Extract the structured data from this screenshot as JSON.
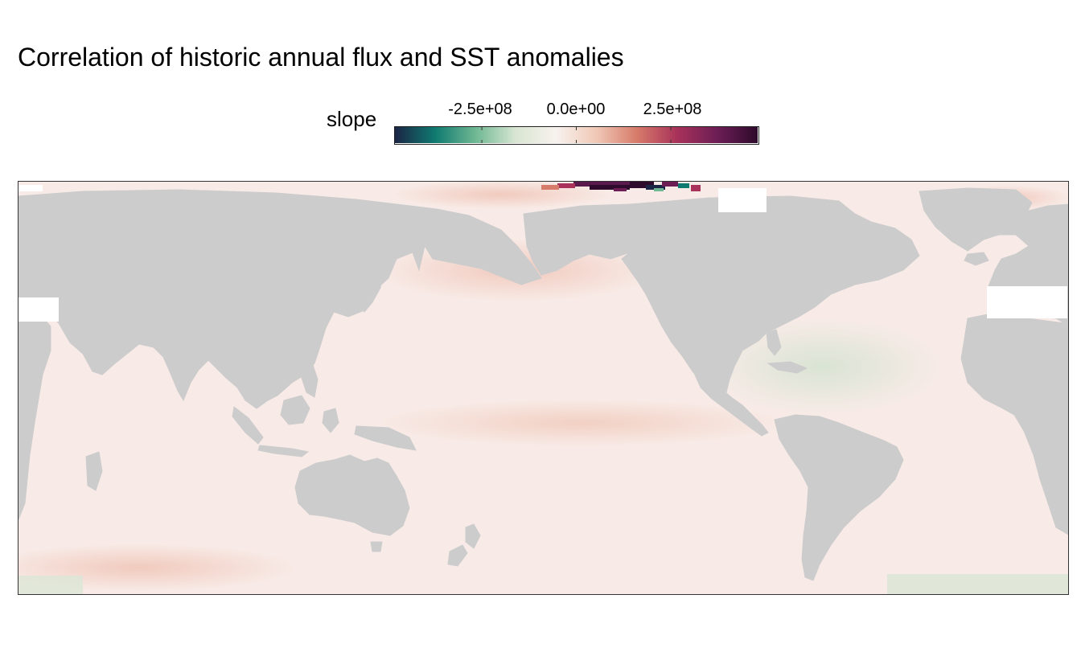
{
  "title": "Correlation of historic annual flux and SST anomalies",
  "legend": {
    "title": "slope",
    "ticks": [
      "-2.5e+08",
      "0.0e+00",
      "2.5e+08"
    ],
    "tick_values": [
      -250000000,
      0,
      250000000
    ],
    "range": [
      -480000000,
      480000000
    ],
    "colormap": [
      "#1b2545",
      "#0f7a70",
      "#6fb893",
      "#d9e6d2",
      "#f7f2ee",
      "#f0c8b6",
      "#d77b6a",
      "#a8325a",
      "#6c1e55",
      "#2e0a2c"
    ]
  },
  "map": {
    "projection": "equirectangular, Pacific-centered",
    "land_color": "#cccccc",
    "ocean_base_color": "#f8ebe7"
  }
}
